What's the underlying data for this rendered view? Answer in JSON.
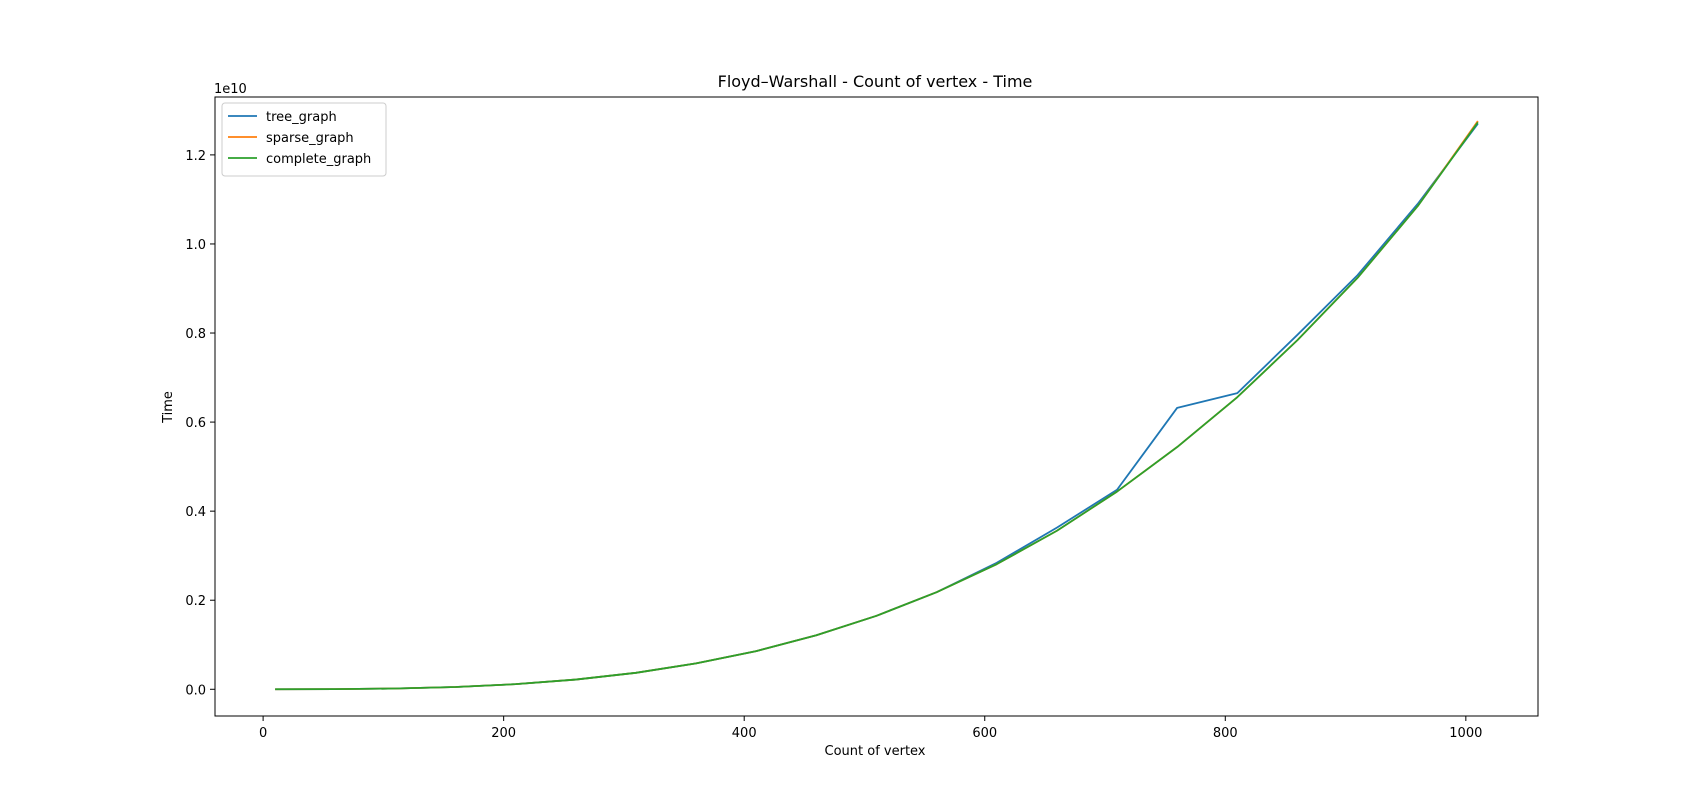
{
  "chart_data": {
    "type": "line",
    "title": "Floyd–Warshall - Count of vertex - Time",
    "xlabel": "Count of vertex",
    "ylabel": "Time",
    "y_offset_label": "1e10",
    "xlim": [
      -40,
      1060
    ],
    "ylim": [
      -0.06,
      1.33
    ],
    "y_scale_note": "values in units of 1e10",
    "x_ticks": [
      0,
      200,
      400,
      600,
      800,
      1000
    ],
    "x_tick_labels": [
      "0",
      "200",
      "400",
      "600",
      "800",
      "1000"
    ],
    "y_ticks": [
      0.0,
      0.2,
      0.4,
      0.6,
      0.8,
      1.0,
      1.2
    ],
    "y_tick_labels": [
      "0.0",
      "0.2",
      "0.4",
      "0.6",
      "0.8",
      "1.0",
      "1.2"
    ],
    "grid": false,
    "legend_position": "top-left",
    "x": [
      10,
      60,
      110,
      160,
      210,
      260,
      310,
      360,
      410,
      460,
      510,
      560,
      610,
      660,
      710,
      760,
      810,
      860,
      910,
      960,
      1010
    ],
    "series": [
      {
        "name": "tree_graph",
        "color": "#1f77b4",
        "values": [
          0.0,
          0.0003,
          0.0017,
          0.0051,
          0.0115,
          0.0218,
          0.037,
          0.0581,
          0.0858,
          0.1213,
          0.165,
          0.218,
          0.284,
          0.363,
          0.448,
          0.632,
          0.665,
          0.796,
          0.93,
          1.09,
          1.27
        ]
      },
      {
        "name": "sparse_graph",
        "color": "#ff7f0e",
        "values": [
          0.0,
          0.0003,
          0.0017,
          0.0051,
          0.0115,
          0.0218,
          0.037,
          0.0581,
          0.0858,
          0.1213,
          0.165,
          0.218,
          0.281,
          0.356,
          0.444,
          0.544,
          0.656,
          0.784,
          0.924,
          1.085,
          1.276
        ]
      },
      {
        "name": "complete_graph",
        "color": "#2ca02c",
        "values": [
          0.0,
          0.0003,
          0.0017,
          0.0051,
          0.0115,
          0.0218,
          0.037,
          0.0581,
          0.0858,
          0.1213,
          0.165,
          0.218,
          0.281,
          0.356,
          0.444,
          0.544,
          0.656,
          0.784,
          0.924,
          1.085,
          1.273
        ]
      }
    ]
  }
}
